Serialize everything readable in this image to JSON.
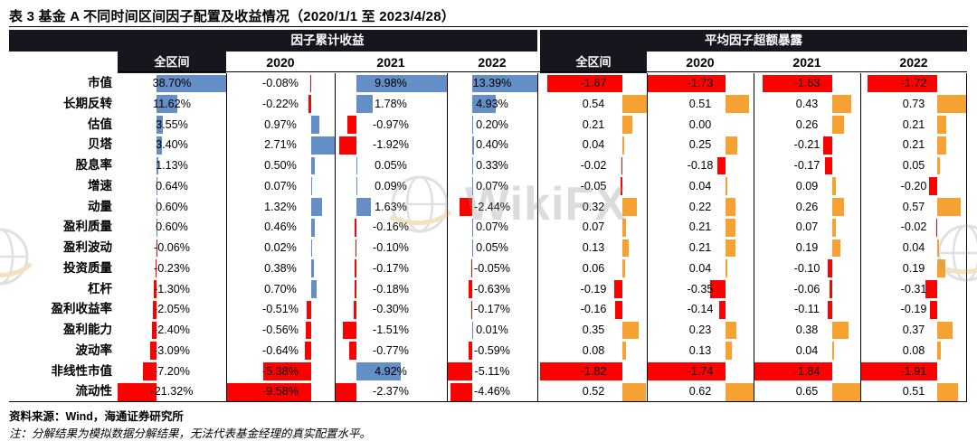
{
  "title": "表 3 基金 A 不同时间区间因子配置及收益情况（2020/1/1 至 2023/4/28）",
  "watermark": {
    "text": "WikiFX"
  },
  "footer": {
    "source": "资料来源：Wind，海通证券研究所",
    "note": "注：分解结果为模拟数据分解结果，无法代表基金经理的真实配置水平。"
  },
  "colors": {
    "header_bg": "#16161E",
    "returns_positive": "#638EC6",
    "exposure_positive": "#F6A233",
    "negative": "#FE0000"
  },
  "chart_data": {
    "type": "table",
    "title": "基金 A 不同时间区间因子配置及收益情况（2020/1/1 至 2023/4/28）",
    "column_groups": [
      {
        "label": "因子累计收益",
        "columns": [
          "全区间",
          "2020",
          "2021",
          "2022"
        ],
        "unit": "%"
      },
      {
        "label": "平均因子超额暴露",
        "columns": [
          "全区间",
          "2020",
          "2021",
          "2022"
        ],
        "unit": ""
      }
    ],
    "rows": [
      {
        "label": "市值",
        "returns": [
          38.7,
          -0.08,
          9.98,
          13.39
        ],
        "exposure": [
          -1.67,
          -1.73,
          -1.63,
          -1.72
        ]
      },
      {
        "label": "长期反转",
        "returns": [
          11.62,
          -0.22,
          1.78,
          4.93
        ],
        "exposure": [
          0.54,
          0.51,
          0.43,
          0.73
        ]
      },
      {
        "label": "估值",
        "returns": [
          3.55,
          0.97,
          -0.97,
          0.2
        ],
        "exposure": [
          0.21,
          0.0,
          0.26,
          0.21
        ]
      },
      {
        "label": "贝塔",
        "returns": [
          3.4,
          2.71,
          -1.92,
          0.4
        ],
        "exposure": [
          0.04,
          0.25,
          -0.21,
          0.21
        ]
      },
      {
        "label": "股息率",
        "returns": [
          1.13,
          0.5,
          0.05,
          0.33
        ],
        "exposure": [
          -0.02,
          -0.18,
          -0.17,
          0.05
        ]
      },
      {
        "label": "增速",
        "returns": [
          0.64,
          0.07,
          0.09,
          0.07
        ],
        "exposure": [
          -0.05,
          0.04,
          0.09,
          -0.2
        ]
      },
      {
        "label": "动量",
        "returns": [
          0.6,
          1.32,
          1.63,
          -2.44
        ],
        "exposure": [
          0.32,
          0.22,
          0.26,
          0.57
        ]
      },
      {
        "label": "盈利质量",
        "returns": [
          0.6,
          0.46,
          -0.16,
          0.07
        ],
        "exposure": [
          0.07,
          0.21,
          0.07,
          -0.02
        ]
      },
      {
        "label": "盈利波动",
        "returns": [
          -0.06,
          0.02,
          -0.1,
          0.05
        ],
        "exposure": [
          0.13,
          0.21,
          0.19,
          0.04
        ]
      },
      {
        "label": "投资质量",
        "returns": [
          -0.23,
          0.38,
          -0.17,
          -0.05
        ],
        "exposure": [
          0.06,
          0.04,
          -0.1,
          0.19
        ]
      },
      {
        "label": "杠杆",
        "returns": [
          -1.3,
          0.7,
          -0.18,
          -0.63
        ],
        "exposure": [
          -0.19,
          -0.35,
          -0.06,
          -0.31
        ]
      },
      {
        "label": "盈利收益率",
        "returns": [
          -2.05,
          -0.51,
          -0.3,
          -0.17
        ],
        "exposure": [
          -0.16,
          -0.14,
          -0.11,
          -0.19
        ]
      },
      {
        "label": "盈利能力",
        "returns": [
          -2.4,
          -0.56,
          -1.51,
          0.01
        ],
        "exposure": [
          0.35,
          0.23,
          0.38,
          0.37
        ]
      },
      {
        "label": "波动率",
        "returns": [
          -3.09,
          -0.64,
          -0.77,
          -0.59
        ],
        "exposure": [
          0.08,
          0.13,
          0.04,
          0.08
        ]
      },
      {
        "label": "非线性市值",
        "returns": [
          -7.2,
          -5.38,
          4.92,
          -5.11
        ],
        "exposure": [
          -1.82,
          -1.74,
          -1.84,
          -1.91
        ]
      },
      {
        "label": "流动性",
        "returns": [
          -21.32,
          -9.58,
          -2.37,
          -4.46
        ],
        "exposure": [
          0.52,
          0.62,
          0.65,
          0.51
        ]
      }
    ]
  }
}
